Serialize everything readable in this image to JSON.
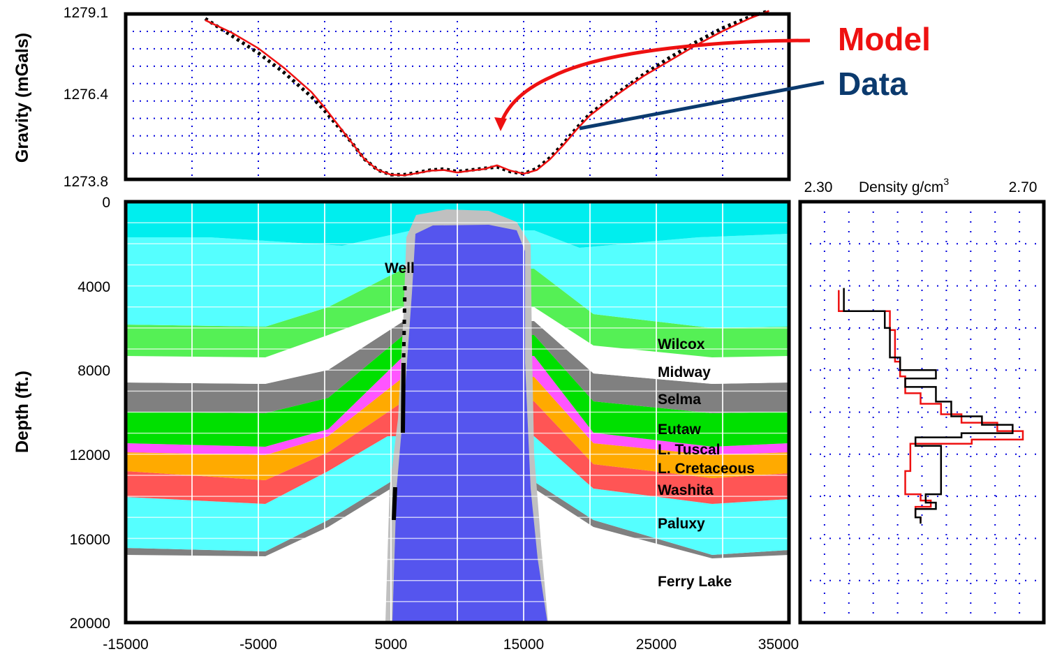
{
  "chart_data": [
    {
      "type": "line",
      "ylabel": "Gravity (mGals)",
      "ytick_labels": [
        "1279.1",
        "1276.4",
        "1273.8"
      ],
      "ylim": [
        1273.8,
        1279.1
      ],
      "xlim": [
        -15000,
        35000
      ],
      "grid": true,
      "legend": [
        {
          "label": "Model",
          "color": "#ee1111"
        },
        {
          "label": "Data",
          "color": "#0b3a6e"
        }
      ],
      "series": [
        {
          "name": "Model",
          "color": "#ee1111",
          "x": [
            -9000,
            -7000,
            -5000,
            -3000,
            -1000,
            0,
            1000,
            2000,
            3000,
            4000,
            5000,
            6000,
            7000,
            8000,
            9000,
            10000,
            11000,
            12000,
            13000,
            14000,
            15000,
            16000,
            17000,
            18000,
            19000,
            20000,
            22000,
            24000,
            26000,
            28000,
            30000,
            32000,
            33500
          ],
          "y": [
            1278.9,
            1278.5,
            1278.0,
            1277.35,
            1276.6,
            1276.1,
            1275.55,
            1275.0,
            1274.45,
            1274.1,
            1273.95,
            1273.93,
            1274.0,
            1274.08,
            1274.1,
            1274.02,
            1274.08,
            1274.13,
            1274.25,
            1274.08,
            1273.98,
            1274.1,
            1274.45,
            1274.9,
            1275.4,
            1275.85,
            1276.5,
            1277.1,
            1277.6,
            1278.1,
            1278.55,
            1278.95,
            1279.2
          ]
        },
        {
          "name": "Data",
          "color": "#000000",
          "x": [
            -9000,
            -7000,
            -5000,
            -3000,
            -1000,
            0,
            1000,
            2000,
            3000,
            4000,
            5000,
            6000,
            7000,
            8000,
            9000,
            10000,
            11000,
            12000,
            13000,
            14000,
            15000,
            16000,
            17000,
            18000,
            19000,
            20000,
            22000,
            24000,
            26000,
            28000,
            30000,
            32000,
            33500
          ],
          "y": [
            1278.95,
            1278.4,
            1277.85,
            1277.2,
            1276.45,
            1276.0,
            1275.5,
            1275.0,
            1274.45,
            1274.1,
            1273.95,
            1273.95,
            1274.02,
            1274.1,
            1274.13,
            1274.05,
            1274.1,
            1274.15,
            1274.2,
            1274.05,
            1273.98,
            1274.15,
            1274.5,
            1274.95,
            1275.45,
            1275.9,
            1276.55,
            1277.15,
            1277.7,
            1278.2,
            1278.65,
            1279.0,
            1279.2
          ]
        }
      ]
    },
    {
      "type": "area",
      "ylabel": "Depth (ft.)",
      "ytick_labels": [
        "0",
        "4000",
        "8000",
        "12000",
        "16000",
        "20000"
      ],
      "xtick_labels": [
        "-15000",
        "-5000",
        "5000",
        "15000",
        "25000",
        "35000"
      ],
      "xlim": [
        -15000,
        35000
      ],
      "ylim": [
        20000,
        0
      ],
      "grid": true,
      "annotation": "Well",
      "layers": [
        {
          "name": "Wilcox",
          "color": "#55f055"
        },
        {
          "name": "Midway",
          "color": "#ffffff"
        },
        {
          "name": "Selma",
          "color": "#808080"
        },
        {
          "name": "Eutaw",
          "color": "#00e000"
        },
        {
          "name": "L. Tuscal",
          "color": "#ff55ff"
        },
        {
          "name": "L. Cretaceous",
          "color": "#ffaa00"
        },
        {
          "name": "Washita",
          "color": "#ff5555"
        },
        {
          "name": "Paluxy",
          "color": "#55ffff"
        },
        {
          "name": "Ferry Lake",
          "color": "#ffffff"
        }
      ],
      "salt_color": "#5555ee"
    },
    {
      "type": "line",
      "title": "Density g/cm",
      "title_superscript": "3",
      "xtick_labels": [
        "2.30",
        "2.70"
      ],
      "xlim": [
        2.3,
        2.7
      ],
      "ylim": [
        20000,
        0
      ],
      "grid": true,
      "series": [
        {
          "name": "",
          "color": "#ee1111",
          "x": [
            2.34,
            2.34,
            2.44,
            2.44,
            2.45,
            2.45,
            2.46,
            2.46,
            2.47,
            2.47,
            2.5,
            2.5,
            2.54,
            2.54,
            2.58,
            2.58,
            2.65,
            2.65,
            2.7,
            2.7,
            2.6,
            2.6,
            2.48,
            2.48,
            2.47,
            2.47,
            2.5,
            2.5,
            2.52,
            2.52,
            2.49,
            2.49,
            2.5,
            2.5
          ],
          "y": [
            4200,
            5200,
            5200,
            6100,
            6100,
            7600,
            7600,
            8300,
            8300,
            9100,
            9100,
            9600,
            9600,
            10100,
            10100,
            10500,
            10500,
            10900,
            10900,
            11300,
            11300,
            11500,
            11500,
            12800,
            12800,
            13900,
            13900,
            14200,
            14200,
            14500,
            14500,
            15000,
            15000,
            15200
          ]
        },
        {
          "name": "",
          "color": "#000000",
          "x": [
            2.35,
            2.35,
            2.43,
            2.43,
            2.44,
            2.44,
            2.46,
            2.46,
            2.53,
            2.53,
            2.47,
            2.47,
            2.53,
            2.53,
            2.56,
            2.56,
            2.62,
            2.62,
            2.68,
            2.68,
            2.58,
            2.58,
            2.49,
            2.49,
            2.54,
            2.54,
            2.51,
            2.51,
            2.53,
            2.53,
            2.49,
            2.49,
            2.5,
            2.5
          ],
          "y": [
            4100,
            5200,
            5200,
            6000,
            6000,
            7400,
            7400,
            8000,
            8000,
            8400,
            8400,
            8800,
            8800,
            9500,
            9500,
            10200,
            10200,
            10600,
            10600,
            11000,
            11000,
            11200,
            11200,
            11600,
            11600,
            13900,
            13900,
            14300,
            14300,
            14600,
            14600,
            15000,
            15000,
            15300
          ]
        }
      ]
    }
  ]
}
